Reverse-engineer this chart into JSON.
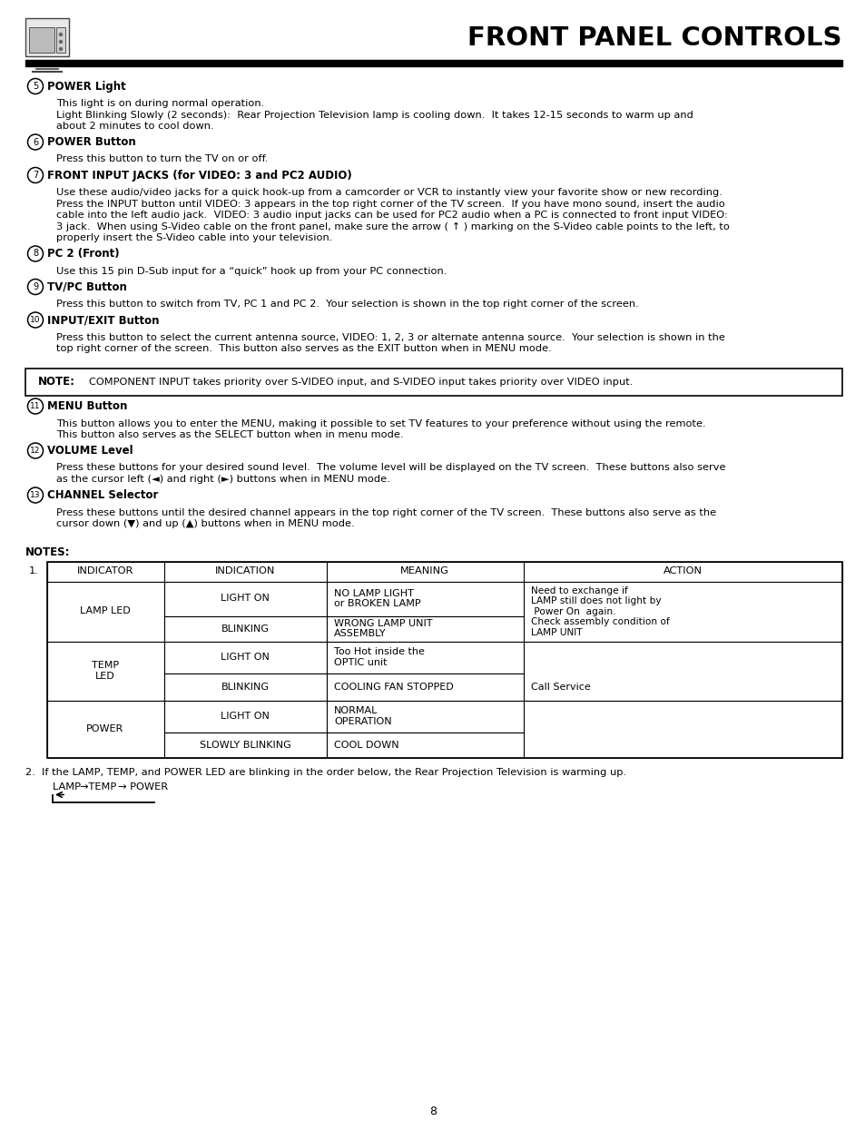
{
  "title": "FRONT PANEL CONTROLS",
  "page_number": "8",
  "sections": [
    {
      "num": "5",
      "heading": "POWER Light",
      "body_lines": [
        "This light is on during normal operation.",
        "Light Blinking Slowly (2 seconds):  Rear Projection Television lamp is cooling down.  It takes 12-15 seconds to warm up and\nabout 2 minutes to cool down."
      ]
    },
    {
      "num": "6",
      "heading": "POWER Button",
      "body_lines": [
        "Press this button to turn the TV on or off."
      ]
    },
    {
      "num": "7",
      "heading": "FRONT INPUT JACKS (for VIDEO: 3 and PC2 AUDIO)",
      "body_lines": [
        "Use these audio/video jacks for a quick hook-up from a camcorder or VCR to instantly view your favorite show or new recording.\nPress the INPUT button until VIDEO: 3 appears in the top right corner of the TV screen.  If you have mono sound, insert the audio\ncable into the left audio jack.  VIDEO: 3 audio input jacks can be used for PC2 audio when a PC is connected to front input VIDEO:\n3 jack.  When using S-Video cable on the front panel, make sure the arrow ( ↑ ) marking on the S-Video cable points to the left, to\nproperly insert the S-Video cable into your television."
      ]
    },
    {
      "num": "8",
      "heading": "PC 2 (Front)",
      "body_lines": [
        "Use this 15 pin D-Sub input for a “quick” hook up from your PC connection."
      ]
    },
    {
      "num": "9",
      "heading": "TV/PC Button",
      "body_lines": [
        "Press this button to switch from TV, PC 1 and PC 2.  Your selection is shown in the top right corner of the screen."
      ]
    },
    {
      "num": "10",
      "heading": "INPUT/EXIT Button",
      "body_lines": [
        "Press this button to select the current antenna source, VIDEO: 1, 2, 3 or alternate antenna source.  Your selection is shown in the\ntop right corner of the screen.  This button also serves as the EXIT button when in MENU mode."
      ]
    }
  ],
  "note_text": "COMPONENT INPUT takes priority over S-VIDEO input, and S-VIDEO input takes priority over VIDEO input.",
  "sections2": [
    {
      "num": "11",
      "heading": "MENU Button",
      "body_lines": [
        "This button allows you to enter the MENU, making it possible to set TV features to your preference without using the remote.\nThis button also serves as the SELECT button when in menu mode."
      ]
    },
    {
      "num": "12",
      "heading": "VOLUME Level",
      "body_lines": [
        "Press these buttons for your desired sound level.  The volume level will be displayed on the TV screen.  These buttons also serve\nas the cursor left (◄) and right (►) buttons when in MENU mode."
      ]
    },
    {
      "num": "13",
      "heading": "CHANNEL Selector",
      "body_lines": [
        "Press these buttons until the desired channel appears in the top right corner of the TV screen.  These buttons also serve as the\ncursor down (▼) and up (▲) buttons when in MENU mode."
      ]
    }
  ],
  "table_headers": [
    "INDICATOR",
    "INDICATION",
    "MEANING",
    "ACTION"
  ],
  "note2_text": "2.  If the LAMP, TEMP, and POWER LED are blinking in the order below, the Rear Projection Television is warming up."
}
